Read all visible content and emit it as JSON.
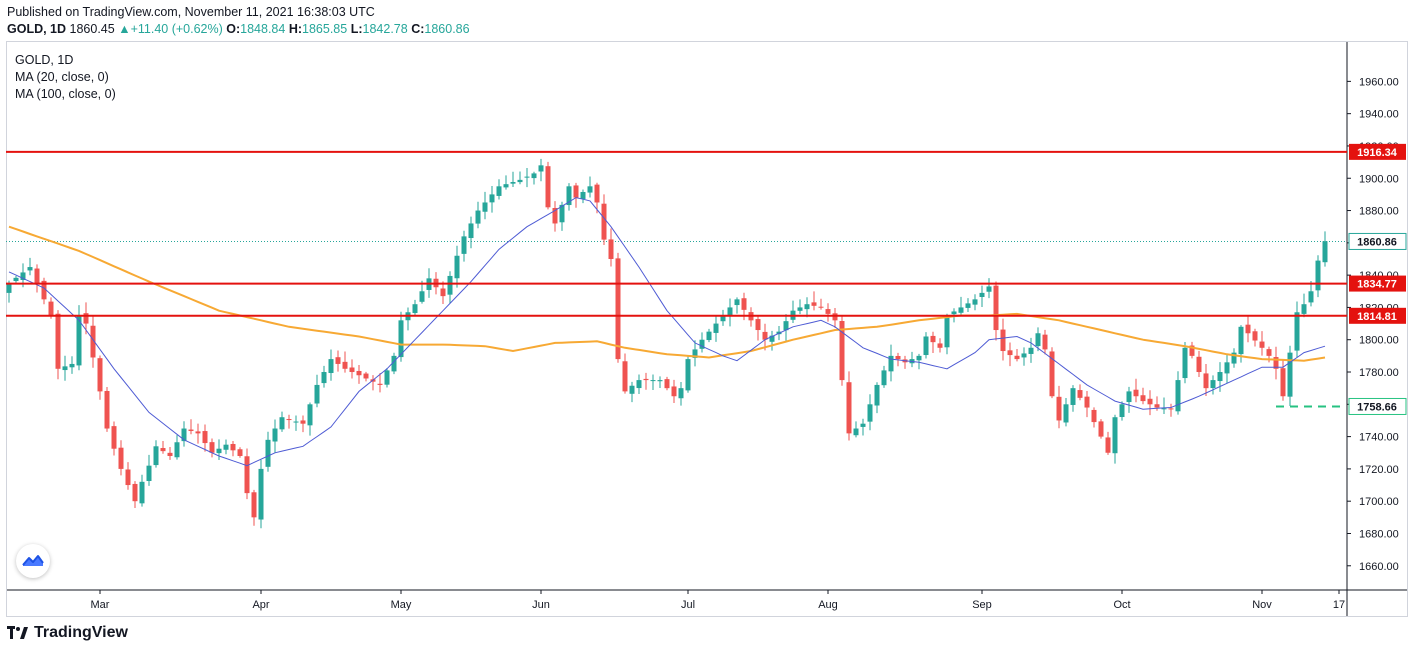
{
  "header": {
    "published": "Published on TradingView.com, November 11, 2021 16:38:03 UTC",
    "symbol": "GOLD, 1D",
    "last": "1860.45",
    "arrow": "▲",
    "change": "+11.40 (+0.62%)",
    "o_label": "O:",
    "o_value": "1848.84",
    "h_label": "H:",
    "h_value": "1865.85",
    "l_label": "L:",
    "l_value": "1842.78",
    "c_label": "C:",
    "c_value": "1860.86"
  },
  "legend": {
    "title": "GOLD, 1D",
    "ma20": "MA (20, close, 0)",
    "ma100": "MA (100, close, 0)"
  },
  "footer": {
    "brand": "TradingView"
  },
  "colors": {
    "up": "#26a69a",
    "down": "#ef5350",
    "ma20": "#4e5bd4",
    "ma100": "#f7a934",
    "level": "#e4120f",
    "dash": "#26c281",
    "axis": "#131722"
  },
  "chart_data": {
    "type": "candlestick",
    "title": "GOLD, 1D",
    "ylim": [
      1645,
      1985
    ],
    "y_ticks": [
      "1660.00",
      "1680.00",
      "1700.00",
      "1720.00",
      "1740.00",
      "1760.00",
      "1780.00",
      "1800.00",
      "1820.00",
      "1840.00",
      "1860.00",
      "1880.00",
      "1900.00",
      "1920.00",
      "1940.00",
      "1960.00"
    ],
    "x_ticks": [
      {
        "label": "Mar",
        "index": 13
      },
      {
        "label": "Apr",
        "index": 36
      },
      {
        "label": "May",
        "index": 56
      },
      {
        "label": "Jun",
        "index": 76
      },
      {
        "label": "Jul",
        "index": 97
      },
      {
        "label": "Aug",
        "index": 117
      },
      {
        "label": "Sep",
        "index": 139
      },
      {
        "label": "Oct",
        "index": 159
      },
      {
        "label": "Nov",
        "index": 179
      },
      {
        "label": "17",
        "index": 190
      }
    ],
    "levels": [
      {
        "value": 1916.34,
        "label": "1916.34",
        "style": "solid"
      },
      {
        "value": 1834.77,
        "label": "1834.77",
        "style": "solid"
      },
      {
        "value": 1814.81,
        "label": "1814.81",
        "style": "solid"
      },
      {
        "value": 1758.66,
        "label": "1758.66",
        "style": "dashed",
        "from_index": 181
      }
    ],
    "last_price": {
      "value": 1860.86,
      "label": "1860.86"
    },
    "close_anchors": [
      [
        0,
        1835
      ],
      [
        3,
        1845
      ],
      [
        6,
        1815
      ],
      [
        7,
        1782
      ],
      [
        9,
        1785
      ],
      [
        10,
        1815
      ],
      [
        11,
        1810
      ],
      [
        13,
        1768
      ],
      [
        14,
        1745
      ],
      [
        16,
        1720
      ],
      [
        18,
        1700
      ],
      [
        19,
        1712
      ],
      [
        20,
        1722
      ],
      [
        21,
        1734
      ],
      [
        23,
        1728
      ],
      [
        25,
        1745
      ],
      [
        27,
        1742
      ],
      [
        29,
        1730
      ],
      [
        31,
        1735
      ],
      [
        33,
        1728
      ],
      [
        34,
        1705
      ],
      [
        35,
        1690
      ],
      [
        36,
        1720
      ],
      [
        37,
        1738
      ],
      [
        39,
        1752
      ],
      [
        42,
        1748
      ],
      [
        44,
        1772
      ],
      [
        46,
        1788
      ],
      [
        48,
        1782
      ],
      [
        51,
        1776
      ],
      [
        53,
        1772
      ],
      [
        55,
        1790
      ],
      [
        56,
        1812
      ],
      [
        58,
        1822
      ],
      [
        60,
        1838
      ],
      [
        62,
        1827
      ],
      [
        64,
        1852
      ],
      [
        65,
        1864
      ],
      [
        67,
        1880
      ],
      [
        70,
        1895
      ],
      [
        73,
        1899
      ],
      [
        75,
        1903
      ],
      [
        76,
        1908
      ],
      [
        77,
        1882
      ],
      [
        78,
        1872
      ],
      [
        80,
        1895
      ],
      [
        81,
        1888
      ],
      [
        83,
        1895
      ],
      [
        84,
        1885
      ],
      [
        85,
        1862
      ],
      [
        86,
        1850
      ],
      [
        87,
        1788
      ],
      [
        88,
        1768
      ],
      [
        90,
        1775
      ],
      [
        93,
        1775
      ],
      [
        95,
        1765
      ],
      [
        96,
        1770
      ],
      [
        97,
        1788
      ],
      [
        99,
        1800
      ],
      [
        101,
        1810
      ],
      [
        104,
        1825
      ],
      [
        106,
        1812
      ],
      [
        108,
        1800
      ],
      [
        110,
        1805
      ],
      [
        112,
        1818
      ],
      [
        114,
        1822
      ],
      [
        116,
        1820
      ],
      [
        118,
        1812
      ],
      [
        119,
        1775
      ],
      [
        120,
        1742
      ],
      [
        122,
        1748
      ],
      [
        124,
        1772
      ],
      [
        126,
        1790
      ],
      [
        128,
        1786
      ],
      [
        130,
        1790
      ],
      [
        131,
        1802
      ],
      [
        133,
        1795
      ],
      [
        134,
        1815
      ],
      [
        136,
        1820
      ],
      [
        138,
        1825
      ],
      [
        140,
        1833
      ],
      [
        141,
        1806
      ],
      [
        142,
        1793
      ],
      [
        144,
        1788
      ],
      [
        146,
        1795
      ],
      [
        147,
        1804
      ],
      [
        148,
        1794
      ],
      [
        149,
        1765
      ],
      [
        150,
        1750
      ],
      [
        152,
        1770
      ],
      [
        154,
        1758
      ],
      [
        156,
        1740
      ],
      [
        157,
        1730
      ],
      [
        158,
        1752
      ],
      [
        160,
        1768
      ],
      [
        162,
        1762
      ],
      [
        164,
        1758
      ],
      [
        166,
        1757
      ],
      [
        167,
        1775
      ],
      [
        168,
        1795
      ],
      [
        169,
        1790
      ],
      [
        171,
        1770
      ],
      [
        173,
        1780
      ],
      [
        175,
        1792
      ],
      [
        176,
        1808
      ],
      [
        177,
        1804
      ],
      [
        179,
        1795
      ],
      [
        180,
        1790
      ],
      [
        181,
        1782
      ],
      [
        182,
        1765
      ],
      [
        183,
        1792
      ],
      [
        184,
        1817
      ],
      [
        185,
        1822
      ],
      [
        186,
        1830
      ],
      [
        187,
        1849
      ],
      [
        188,
        1861
      ]
    ],
    "ma20_anchors": [
      [
        0,
        1842
      ],
      [
        5,
        1832
      ],
      [
        10,
        1812
      ],
      [
        15,
        1782
      ],
      [
        20,
        1755
      ],
      [
        25,
        1738
      ],
      [
        30,
        1728
      ],
      [
        34,
        1722
      ],
      [
        38,
        1730
      ],
      [
        42,
        1734
      ],
      [
        46,
        1746
      ],
      [
        50,
        1768
      ],
      [
        54,
        1782
      ],
      [
        58,
        1800
      ],
      [
        62,
        1818
      ],
      [
        66,
        1836
      ],
      [
        70,
        1856
      ],
      [
        74,
        1870
      ],
      [
        78,
        1880
      ],
      [
        81,
        1888
      ],
      [
        83,
        1886
      ],
      [
        86,
        1870
      ],
      [
        90,
        1845
      ],
      [
        94,
        1818
      ],
      [
        98,
        1798
      ],
      [
        102,
        1790
      ],
      [
        104,
        1787
      ],
      [
        108,
        1800
      ],
      [
        112,
        1808
      ],
      [
        116,
        1812
      ],
      [
        118,
        1808
      ],
      [
        122,
        1795
      ],
      [
        126,
        1788
      ],
      [
        130,
        1786
      ],
      [
        134,
        1782
      ],
      [
        138,
        1792
      ],
      [
        140,
        1800
      ],
      [
        144,
        1802
      ],
      [
        146,
        1798
      ],
      [
        150,
        1785
      ],
      [
        154,
        1772
      ],
      [
        158,
        1762
      ],
      [
        162,
        1757
      ],
      [
        166,
        1758
      ],
      [
        170,
        1765
      ],
      [
        175,
        1775
      ],
      [
        179,
        1783
      ],
      [
        182,
        1783
      ],
      [
        185,
        1792
      ],
      [
        188,
        1796
      ]
    ],
    "ma100_anchors": [
      [
        0,
        1870
      ],
      [
        10,
        1855
      ],
      [
        20,
        1836
      ],
      [
        30,
        1818
      ],
      [
        40,
        1808
      ],
      [
        50,
        1802
      ],
      [
        56,
        1797
      ],
      [
        62,
        1797
      ],
      [
        68,
        1796
      ],
      [
        72,
        1793
      ],
      [
        78,
        1798
      ],
      [
        84,
        1799
      ],
      [
        88,
        1795
      ],
      [
        94,
        1791
      ],
      [
        100,
        1789
      ],
      [
        106,
        1793
      ],
      [
        112,
        1800
      ],
      [
        118,
        1806
      ],
      [
        124,
        1808
      ],
      [
        130,
        1812
      ],
      [
        136,
        1815
      ],
      [
        140,
        1815
      ],
      [
        144,
        1816
      ],
      [
        150,
        1812
      ],
      [
        156,
        1806
      ],
      [
        162,
        1800
      ],
      [
        168,
        1796
      ],
      [
        174,
        1791
      ],
      [
        179,
        1788
      ],
      [
        185,
        1787
      ],
      [
        188,
        1789
      ]
    ]
  }
}
